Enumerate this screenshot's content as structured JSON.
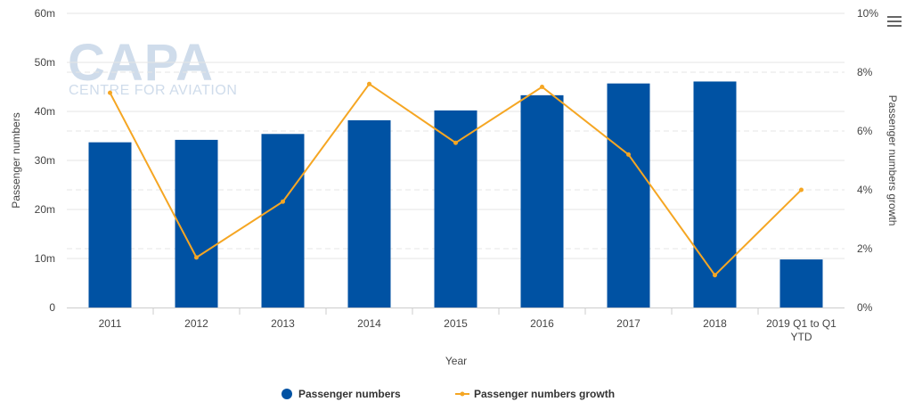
{
  "chart_data": {
    "type": "bar",
    "categories": [
      "2011",
      "2012",
      "2013",
      "2014",
      "2015",
      "2016",
      "2017",
      "2018",
      "2019 Q1 to Q1 YTD"
    ],
    "category_lines": [
      [
        "2011"
      ],
      [
        "2012"
      ],
      [
        "2013"
      ],
      [
        "2014"
      ],
      [
        "2015"
      ],
      [
        "2016"
      ],
      [
        "2017"
      ],
      [
        "2018"
      ],
      [
        "2019 Q1 to Q1",
        "YTD"
      ]
    ],
    "series": [
      {
        "name": "Passenger numbers",
        "type": "bar",
        "axis": "left",
        "color": "#0052a3",
        "values": [
          33.7,
          34.2,
          35.4,
          38.2,
          40.2,
          43.3,
          45.7,
          46.1,
          9.8
        ]
      },
      {
        "name": "Passenger numbers growth",
        "type": "line",
        "axis": "right",
        "color": "#f5a623",
        "values": [
          7.3,
          1.7,
          3.6,
          7.6,
          5.6,
          7.5,
          5.2,
          1.1,
          4.0
        ]
      }
    ],
    "xlabel": "Year",
    "ylabel": "Passenger numbers",
    "y2label": "Passenger numbers growth",
    "ylim": [
      0,
      60
    ],
    "y2lim": [
      0,
      10
    ],
    "yticks": [
      "0",
      "10m",
      "20m",
      "30m",
      "40m",
      "50m",
      "60m"
    ],
    "y2ticks": [
      "0%",
      "2%",
      "4%",
      "6%",
      "8%",
      "10%"
    ],
    "grid": true,
    "legend_position": "bottom-center"
  },
  "watermark": {
    "big": "CAPA",
    "small": "CENTRE FOR AVIATION"
  },
  "menu_icon": "hamburger-menu-icon"
}
